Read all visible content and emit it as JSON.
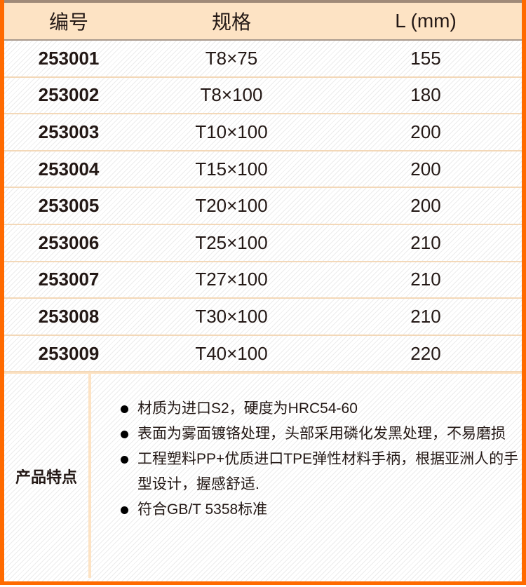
{
  "table": {
    "headers": [
      "编号",
      "规格",
      "L (mm)"
    ],
    "rows": [
      [
        "253001",
        "T8×75",
        "155"
      ],
      [
        "253002",
        "T8×100",
        "180"
      ],
      [
        "253003",
        "T10×100",
        "200"
      ],
      [
        "253004",
        "T15×100",
        "200"
      ],
      [
        "253005",
        "T20×100",
        "200"
      ],
      [
        "253006",
        "T25×100",
        "210"
      ],
      [
        "253007",
        "T27×100",
        "210"
      ],
      [
        "253008",
        "T30×100",
        "210"
      ],
      [
        "253009",
        "T40×100",
        "220"
      ]
    ]
  },
  "features": {
    "label": "产品特点",
    "items": [
      "材质为进口S2，硬度为HRC54-60",
      "表面为雾面镀铬处理，头部采用磷化发黑处理，不易磨损",
      "工程塑料PP+优质进口TPE弹性材料手柄，根据亚洲人的手型设计，握感舒适.",
      "符合GB/T 5358标准"
    ]
  },
  "colors": {
    "border": "#ff6a00",
    "header_bg": "#fde3c4"
  }
}
